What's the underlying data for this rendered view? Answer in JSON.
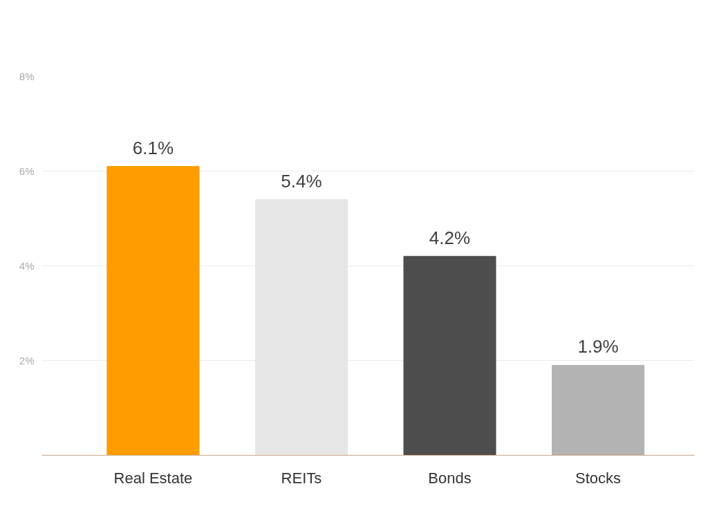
{
  "chart_data": {
    "type": "bar",
    "categories": [
      "Real Estate",
      "REITs",
      "Bonds",
      "Stocks"
    ],
    "values": [
      6.1,
      5.4,
      4.2,
      1.9
    ],
    "colors": [
      "#ff9c00",
      "#e6e6e6",
      "#4d4d4d",
      "#b3b3b3"
    ],
    "value_labels": [
      "6.1%",
      "5.4%",
      "4.2%",
      "1.9%"
    ],
    "ylim": [
      0,
      8
    ],
    "yticks": [
      {
        "value": 2,
        "label": "2%"
      },
      {
        "value": 4,
        "label": "4%"
      },
      {
        "value": 6,
        "label": "6%"
      },
      {
        "value": 8,
        "label": "8%"
      }
    ],
    "grid": "y"
  }
}
